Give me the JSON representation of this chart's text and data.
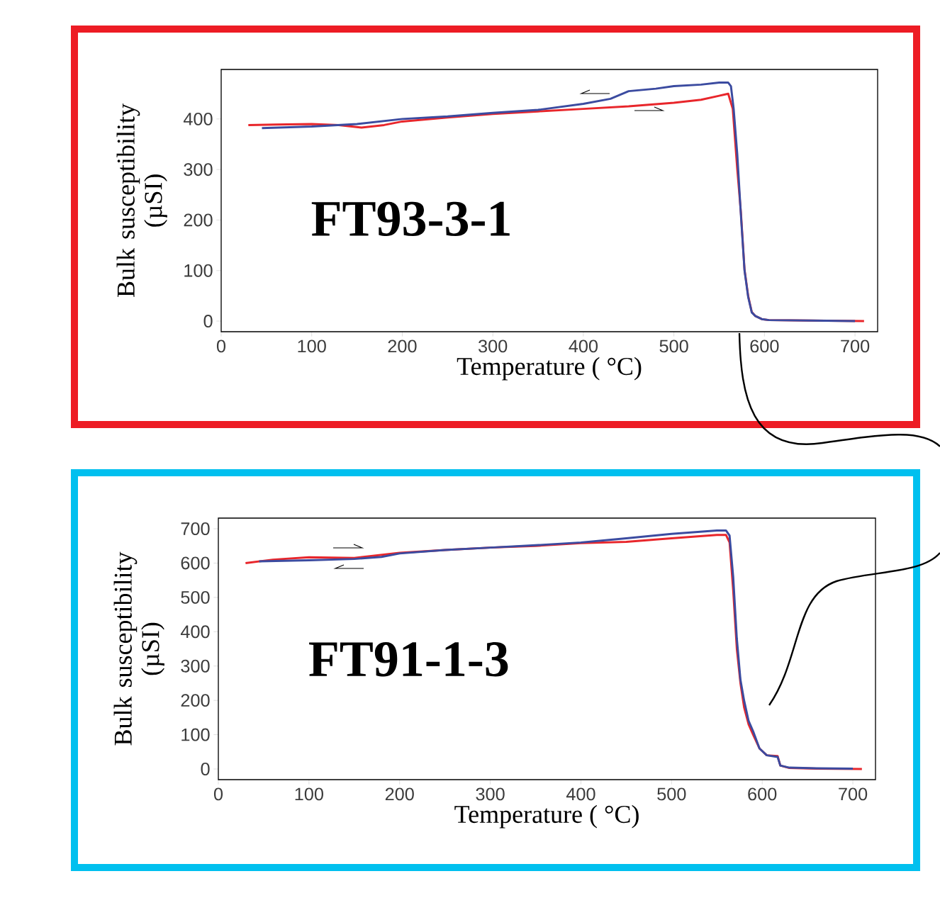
{
  "chart_data": [
    {
      "type": "line",
      "xlabel": "Temperature ( °C)",
      "ylabel": "Bulk susceptibility (µSI)",
      "annotations": [
        "FT93-3-1"
      ],
      "xlim": [
        0,
        725
      ],
      "ylim": [
        -21,
        498
      ],
      "xticks": [
        0,
        100,
        200,
        300,
        400,
        500,
        600,
        700
      ],
      "yticks": [
        0,
        100,
        200,
        300,
        400
      ],
      "line_style": "solid",
      "series": [
        {
          "color": "#e8262b",
          "x": [
            30,
            60,
            100,
            130,
            155,
            180,
            200,
            250,
            300,
            350,
            400,
            450,
            500,
            530,
            550,
            560,
            565,
            570,
            574,
            578,
            582,
            586,
            590,
            597,
            605,
            650,
            710
          ],
          "values": [
            388,
            389,
            390,
            388,
            383,
            388,
            395,
            403,
            410,
            415,
            420,
            425,
            432,
            438,
            446,
            450,
            420,
            300,
            215,
            102,
            50,
            18,
            10,
            4,
            2,
            1,
            0
          ]
        },
        {
          "color": "#3b4ba0",
          "x": [
            45,
            100,
            150,
            200,
            250,
            300,
            350,
            400,
            430,
            450,
            480,
            500,
            530,
            550,
            560,
            563,
            566,
            570,
            574,
            578,
            582,
            586,
            590,
            597,
            605,
            650,
            700
          ],
          "values": [
            382,
            385,
            390,
            400,
            405,
            412,
            418,
            430,
            440,
            455,
            460,
            465,
            468,
            472,
            472,
            465,
            420,
            330,
            210,
            100,
            48,
            17,
            10,
            4,
            2,
            1,
            0
          ]
        }
      ]
    },
    {
      "type": "line",
      "xlabel": "Temperature ( °C)",
      "ylabel": "Bulk susceptibility (µSI)",
      "annotations": [
        "FT91-1-3"
      ],
      "xlim": [
        0,
        725
      ],
      "ylim": [
        -31,
        731
      ],
      "xticks": [
        0,
        100,
        200,
        300,
        400,
        500,
        600,
        700
      ],
      "yticks": [
        0,
        100,
        200,
        300,
        400,
        500,
        600,
        700
      ],
      "line_style": "solid",
      "series": [
        {
          "color": "#e8262b",
          "x": [
            30,
            60,
            100,
            150,
            200,
            250,
            300,
            350,
            400,
            450,
            500,
            550,
            560,
            564,
            568,
            572,
            576,
            580,
            585,
            590,
            597,
            605,
            617,
            620,
            630,
            660,
            710
          ],
          "values": [
            600,
            610,
            617,
            615,
            630,
            638,
            645,
            650,
            658,
            662,
            672,
            682,
            682,
            660,
            520,
            350,
            250,
            180,
            130,
            100,
            60,
            40,
            38,
            10,
            3,
            1,
            0
          ]
        },
        {
          "color": "#3b4ba0",
          "x": [
            45,
            100,
            150,
            180,
            200,
            250,
            300,
            350,
            400,
            450,
            500,
            550,
            560,
            564,
            568,
            572,
            576,
            580,
            585,
            590,
            597,
            605,
            617,
            620,
            630,
            660,
            700
          ],
          "values": [
            605,
            608,
            612,
            618,
            628,
            638,
            645,
            652,
            660,
            672,
            685,
            695,
            695,
            680,
            560,
            380,
            260,
            200,
            140,
            110,
            60,
            40,
            35,
            10,
            4,
            2,
            1
          ]
        }
      ]
    }
  ]
}
